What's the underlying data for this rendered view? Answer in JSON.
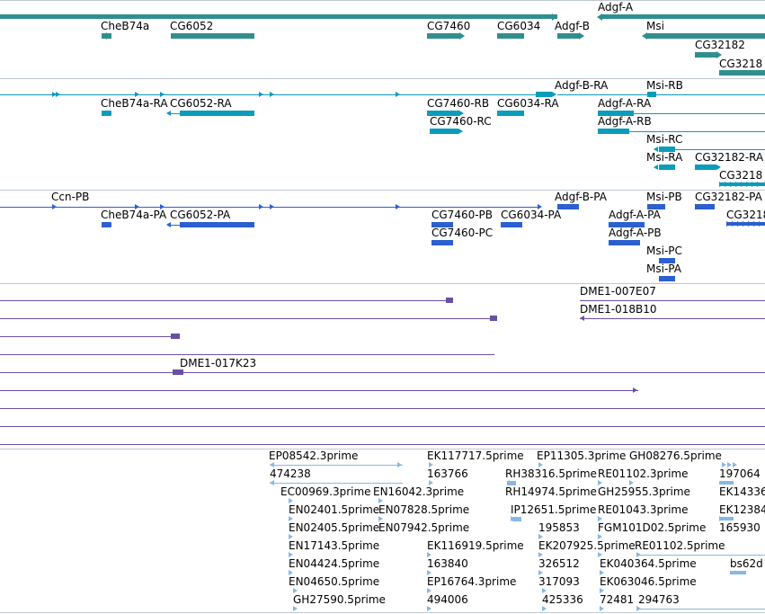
{
  "colors": {
    "gene": "#2f8f8f",
    "transcript": "#0b9bbd",
    "protein": "#2c5fd0",
    "clone": "#6a50a0",
    "est": "#88b8e4",
    "separator": "#bfc8d2"
  },
  "tracks": {
    "genes": {
      "labels": [
        "Adgf-A",
        "CheB74a",
        "CG6052",
        "CG7460",
        "CG6034",
        "Adgf-B",
        "Msi",
        "CG32182",
        "CG3218"
      ]
    },
    "transcripts": {
      "labels": [
        "Adgf-B-RA",
        "Msi-RB",
        "CheB74a-RA",
        "CG6052-RA",
        "CG7460-RB",
        "CG6034-RA",
        "Adgf-A-RA",
        "CG7460-RC",
        "Adgf-A-RB",
        "Msi-RC",
        "Msi-RA",
        "CG32182-RA",
        "CG3218"
      ]
    },
    "proteins": {
      "labels": [
        "Ccn-PB",
        "Adgf-B-PA",
        "Msi-PB",
        "CG32182-PA",
        "CheB74a-PA",
        "CG6052-PA",
        "CG7460-PB",
        "CG6034-PA",
        "Adgf-A-PA",
        "CG3218",
        "CG7460-PC",
        "Adgf-A-PB",
        "Msi-PC",
        "Msi-PA"
      ]
    },
    "clones": {
      "labels": [
        "DME1-007E07",
        "DME1-018B10",
        "DME1-017K23"
      ]
    },
    "ests": {
      "labels": [
        "EP08542.3prime",
        "EK117717.5prime",
        "EP11305.3prime",
        "GH08276.5prime",
        "474238",
        "163766",
        "RH38316.5prime",
        "RE01102.3prime",
        "197064",
        "EC00969.3prime",
        "EN16042.3prime",
        "RH14974.5prime",
        "GH25955.3prime",
        "EK14336",
        "EN02401.5prime",
        "EN07828.5prime",
        "IP12651.5prime",
        "RE01043.3prime",
        "EK12384",
        "EN02405.5prime",
        "EN07942.5prime",
        "195853",
        "FGM101D02.5prime",
        "165930",
        "EN17143.5prime",
        "EK116919.5prime",
        "EK207925.5prime",
        "RE01102.5prime",
        "EN04424.5prime",
        "163840",
        "326512",
        "EK040364.5prime",
        "bs62d",
        "EN04650.5prime",
        "EP16764.3prime",
        "317093",
        "EK063046.5prime",
        "GH27590.5prime",
        "494006",
        "425336",
        "72481",
        "294763"
      ]
    }
  }
}
